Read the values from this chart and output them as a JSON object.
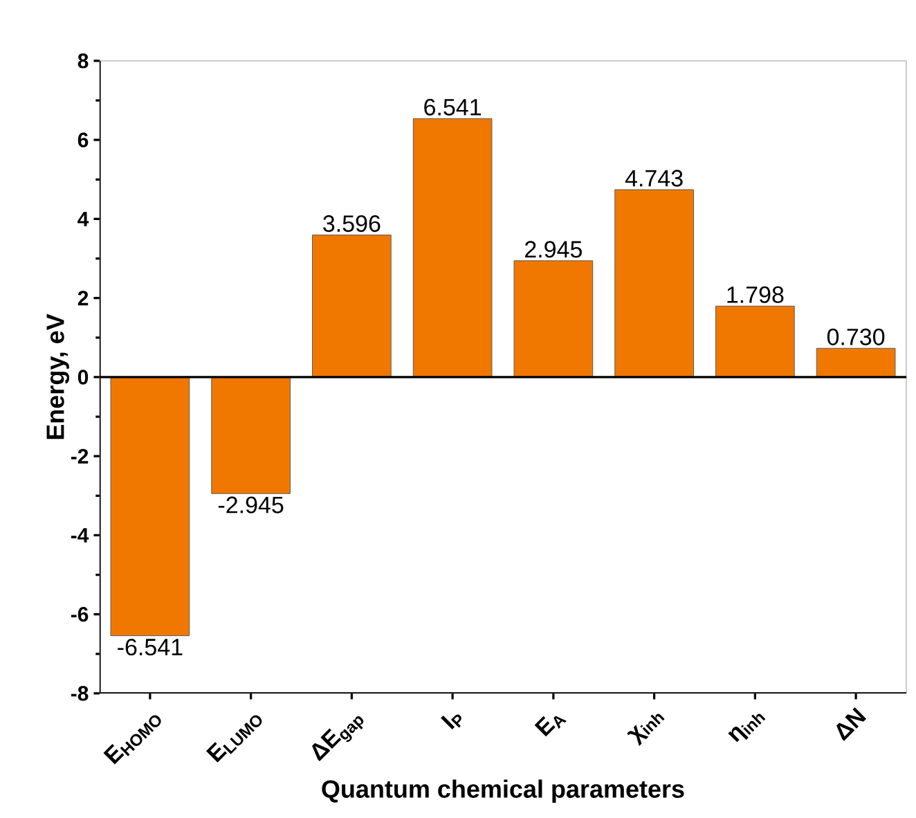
{
  "chart_data": {
    "type": "bar",
    "xlabel": "Quantum chemical parameters",
    "ylabel": "Energy, eV",
    "categories": [
      "E$_{HOMO}$",
      "E$_{LUMO}$",
      "ΔE$_{gap}$",
      "I$_{P}$",
      "E$_{A}$",
      "χ$_{inh}$",
      "η$_{inh}$",
      "ΔN"
    ],
    "values": [
      -6.541,
      -2.945,
      3.596,
      6.541,
      2.945,
      4.743,
      1.798,
      0.73
    ],
    "value_labels": [
      "-6.541",
      "-2.945",
      "3.596",
      "6.541",
      "2.945",
      "4.743",
      "1.798",
      "0.730"
    ],
    "color": "#f07800",
    "ylim": [
      -8,
      8
    ],
    "yticks": [
      -8,
      -6,
      -4,
      -2,
      0,
      2,
      4,
      6,
      8
    ]
  }
}
